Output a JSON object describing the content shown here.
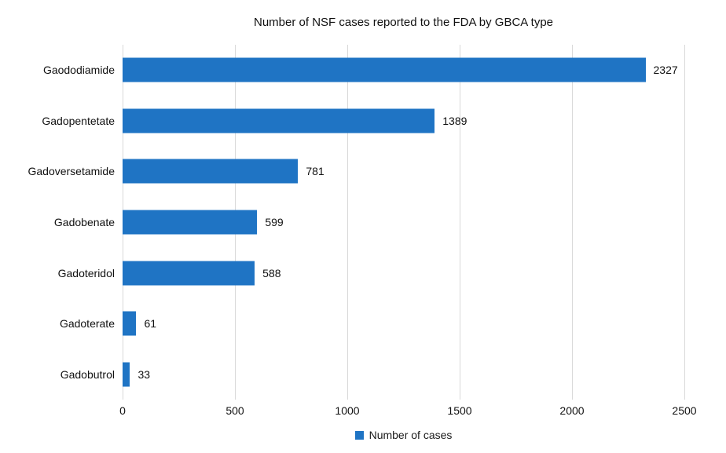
{
  "title": "Number of NSF cases reported to the FDA by GBCA type",
  "legend": {
    "label": "Number of cases",
    "marker_color": "#1F74C4"
  },
  "colors": {
    "bar": "#1F74C4",
    "gridline": "#d9d9d9",
    "text": "#111111",
    "background": "#ffffff"
  },
  "chart_data": {
    "type": "bar",
    "orientation": "horizontal",
    "title": "Number of NSF cases reported to the FDA by GBCA type",
    "categories": [
      "Gaododiamide",
      "Gadopentetate",
      "Gadoversetamide",
      "Gadobenate",
      "Gadoteridol",
      "Gadoterate",
      "Gadobutrol"
    ],
    "values": [
      2327,
      1389,
      781,
      599,
      588,
      61,
      33
    ],
    "value_labels": [
      "2327",
      "1389",
      "781",
      "599",
      "588",
      "61",
      "33"
    ],
    "xlabel": "",
    "ylabel": "",
    "xlim": [
      0,
      2500
    ],
    "xticks": [
      0,
      500,
      1000,
      1500,
      2000,
      2500
    ],
    "xtick_labels": [
      "0",
      "500",
      "1000",
      "1500",
      "2000",
      "2500"
    ],
    "grid": true,
    "legend_entries": [
      "Number of cases"
    ],
    "legend_position": "bottom"
  }
}
